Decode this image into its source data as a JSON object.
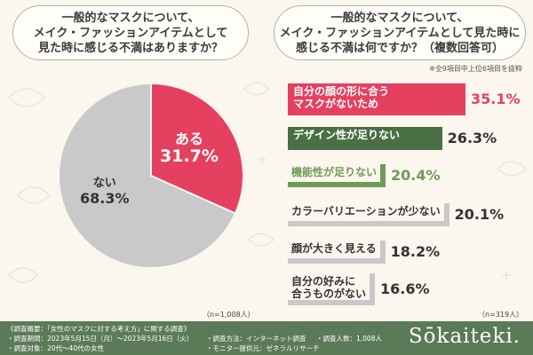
{
  "left_question": "一般的なマスクについて、\nメイク・ファッションアイテムとして\n見た時に感じる不満はありますか？",
  "right_question": "一般的なマスクについて、\nメイク・ファッションアイテムとして見た時に\n感じる不満は何ですか？（複数回答可）",
  "right_note": "※全9項目中上位6項目を抜粋",
  "left_n": "（n=1,008人）",
  "right_n": "（n=319人）",
  "colors": {
    "accent_red": "#e5405f",
    "dark_green": "#4a6f45",
    "mid_green": "#6f9b57",
    "gray": "#c9c9c9",
    "footer_green": "#5b7a57"
  },
  "chart_data": [
    {
      "type": "pie",
      "labels": [
        "ある",
        "ない"
      ],
      "values": [
        31.7,
        68.3
      ],
      "value_labels": [
        "31.7%",
        "68.3%"
      ]
    },
    {
      "type": "bar",
      "categories": [
        "自分の顔の形に合う\nマスクがないため",
        "デザイン性が足りない",
        "機能性が足りない",
        "カラーバリエーションが少ない",
        "顔が大きく見える",
        "自分の好みに\n合うものがない"
      ],
      "values": [
        35.1,
        26.3,
        20.4,
        20.1,
        18.2,
        16.6
      ],
      "value_labels": [
        "35.1%",
        "26.3%",
        "20.4%",
        "20.1%",
        "18.2%",
        "16.6%"
      ]
    }
  ],
  "footer": {
    "title": "《調査概要：「女性のマスクに対する考え方」に関する調査》",
    "period": "・調査期間：2023年5月15日（月）〜2023年5月16日（火）",
    "method": "・調査方法：インターネット調査",
    "count": "・調査人数：1,008人",
    "target": "・調査対象：20代〜40代の女性",
    "provider": "・モニター提供元：ゼネラルリサーチ",
    "logo": "Sōkaiteki."
  }
}
